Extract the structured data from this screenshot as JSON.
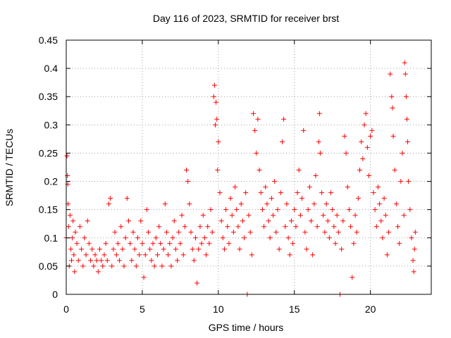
{
  "chart_data": {
    "type": "scatter",
    "title": "Day 116 of 2023, SRMTID for receiver brst",
    "xlabel": "GPS time / hours",
    "ylabel": "SRMTID / TECUs",
    "xlim": [
      0,
      24
    ],
    "ylim": [
      0,
      0.45
    ],
    "x_ticks": [
      0,
      5,
      10,
      15,
      20
    ],
    "y_ticks": [
      0,
      0.05,
      0.1,
      0.15,
      0.2,
      0.25,
      0.3,
      0.35,
      0.4,
      0.45
    ],
    "x_tick_labels": [
      "0",
      "5",
      "10",
      "15",
      "20"
    ],
    "y_tick_labels": [
      "0",
      "0.05",
      "0.1",
      "0.15",
      "0.2",
      "0.25",
      "0.3",
      "0.35",
      "0.4",
      "0.45"
    ],
    "grid": true,
    "marker": "+",
    "marker_color": "#ff0000",
    "series": [
      {
        "name": "SRMTID",
        "points": [
          [
            0.0,
            0.1
          ],
          [
            0.05,
            0.245
          ],
          [
            0.08,
            0.21
          ],
          [
            0.1,
            0.195
          ],
          [
            0.12,
            0.16
          ],
          [
            0.15,
            0.12
          ],
          [
            0.2,
            0.05
          ],
          [
            0.25,
            0.14
          ],
          [
            0.3,
            0.08
          ],
          [
            0.35,
            0.06
          ],
          [
            0.4,
            0.1
          ],
          [
            0.45,
            0.13
          ],
          [
            0.5,
            0.07
          ],
          [
            0.55,
            0.04
          ],
          [
            0.6,
            0.11
          ],
          [
            0.7,
            0.09
          ],
          [
            0.8,
            0.06
          ],
          [
            0.9,
            0.12
          ],
          [
            1.0,
            0.08
          ],
          [
            1.1,
            0.05
          ],
          [
            1.2,
            0.1
          ],
          [
            1.3,
            0.07
          ],
          [
            1.4,
            0.13
          ],
          [
            1.5,
            0.09
          ],
          [
            1.6,
            0.06
          ],
          [
            1.7,
            0.08
          ],
          [
            1.8,
            0.05
          ],
          [
            1.9,
            0.07
          ],
          [
            2.0,
            0.06
          ],
          [
            2.1,
            0.04
          ],
          [
            2.2,
            0.08
          ],
          [
            2.3,
            0.06
          ],
          [
            2.4,
            0.05
          ],
          [
            2.5,
            0.07
          ],
          [
            2.6,
            0.09
          ],
          [
            2.7,
            0.06
          ],
          [
            2.8,
            0.16
          ],
          [
            2.9,
            0.17
          ],
          [
            3.0,
            0.05
          ],
          [
            3.1,
            0.08
          ],
          [
            3.2,
            0.11
          ],
          [
            3.3,
            0.07
          ],
          [
            3.4,
            0.09
          ],
          [
            3.5,
            0.06
          ],
          [
            3.6,
            0.12
          ],
          [
            3.7,
            0.08
          ],
          [
            3.8,
            0.05
          ],
          [
            3.9,
            0.1
          ],
          [
            4.0,
            0.17
          ],
          [
            4.1,
            0.13
          ],
          [
            4.2,
            0.09
          ],
          [
            4.3,
            0.06
          ],
          [
            4.4,
            0.11
          ],
          [
            4.5,
            0.08
          ],
          [
            4.6,
            0.05
          ],
          [
            4.7,
            0.1
          ],
          [
            4.8,
            0.07
          ],
          [
            4.9,
            0.13
          ],
          [
            5.0,
            0.09
          ],
          [
            5.1,
            0.03
          ],
          [
            5.2,
            0.07
          ],
          [
            5.3,
            0.15
          ],
          [
            5.4,
            0.11
          ],
          [
            5.5,
            0.08
          ],
          [
            5.6,
            0.06
          ],
          [
            5.7,
            0.09
          ],
          [
            5.8,
            0.05
          ],
          [
            5.9,
            0.1
          ],
          [
            6.0,
            0.07
          ],
          [
            6.1,
            0.12
          ],
          [
            6.2,
            0.09
          ],
          [
            6.3,
            0.05
          ],
          [
            6.4,
            0.08
          ],
          [
            6.5,
            0.16
          ],
          [
            6.6,
            0.11
          ],
          [
            6.7,
            0.07
          ],
          [
            6.8,
            0.09
          ],
          [
            6.9,
            0.05
          ],
          [
            7.0,
            0.1
          ],
          [
            7.1,
            0.13
          ],
          [
            7.2,
            0.08
          ],
          [
            7.3,
            0.06
          ],
          [
            7.4,
            0.11
          ],
          [
            7.5,
            0.09
          ],
          [
            7.6,
            0.14
          ],
          [
            7.7,
            0.07
          ],
          [
            7.8,
            0.12
          ],
          [
            7.9,
            0.22
          ],
          [
            8.0,
            0.2
          ],
          [
            8.1,
            0.16
          ],
          [
            8.2,
            0.11
          ],
          [
            8.3,
            0.08
          ],
          [
            8.4,
            0.06
          ],
          [
            8.5,
            0.1
          ],
          [
            8.6,
            0.02
          ],
          [
            8.7,
            0.08
          ],
          [
            8.8,
            0.12
          ],
          [
            8.9,
            0.09
          ],
          [
            9.0,
            0.14
          ],
          [
            9.1,
            0.1
          ],
          [
            9.2,
            0.07
          ],
          [
            9.3,
            0.12
          ],
          [
            9.4,
            0.09
          ],
          [
            9.5,
            0.15
          ],
          [
            9.6,
            0.11
          ],
          [
            9.7,
            0.35
          ],
          [
            9.75,
            0.37
          ],
          [
            9.8,
            0.3
          ],
          [
            9.85,
            0.34
          ],
          [
            9.9,
            0.31
          ],
          [
            9.95,
            0.22
          ],
          [
            10.0,
            0.27
          ],
          [
            10.1,
            0.18
          ],
          [
            10.2,
            0.13
          ],
          [
            10.3,
            0.1
          ],
          [
            10.4,
            0.08
          ],
          [
            10.5,
            0.15
          ],
          [
            10.6,
            0.12
          ],
          [
            10.7,
            0.09
          ],
          [
            10.8,
            0.17
          ],
          [
            10.9,
            0.14
          ],
          [
            11.0,
            0.11
          ],
          [
            11.1,
            0.19
          ],
          [
            11.2,
            0.15
          ],
          [
            11.3,
            0.12
          ],
          [
            11.4,
            0.08
          ],
          [
            11.5,
            0.16
          ],
          [
            11.6,
            0.13
          ],
          [
            11.7,
            0.1
          ],
          [
            11.8,
            0.18
          ],
          [
            11.9,
            0.0
          ],
          [
            12.0,
            0.14
          ],
          [
            12.1,
            0.11
          ],
          [
            12.2,
            0.07
          ],
          [
            12.3,
            0.32
          ],
          [
            12.4,
            0.29
          ],
          [
            12.5,
            0.25
          ],
          [
            12.6,
            0.31
          ],
          [
            12.7,
            0.22
          ],
          [
            12.8,
            0.18
          ],
          [
            12.9,
            0.15
          ],
          [
            13.0,
            0.12
          ],
          [
            13.1,
            0.19
          ],
          [
            13.2,
            0.16
          ],
          [
            13.3,
            0.13
          ],
          [
            13.4,
            0.1
          ],
          [
            13.5,
            0.17
          ],
          [
            13.6,
            0.14
          ],
          [
            13.7,
            0.2
          ],
          [
            13.8,
            0.11
          ],
          [
            13.9,
            0.15
          ],
          [
            14.0,
            0.08
          ],
          [
            14.1,
            0.18
          ],
          [
            14.2,
            0.27
          ],
          [
            14.3,
            0.31
          ],
          [
            14.4,
            0.12
          ],
          [
            14.5,
            0.16
          ],
          [
            14.6,
            0.1
          ],
          [
            14.7,
            0.07
          ],
          [
            14.8,
            0.13
          ],
          [
            14.9,
            0.09
          ],
          [
            15.0,
            0.15
          ],
          [
            15.1,
            0.12
          ],
          [
            15.2,
            0.18
          ],
          [
            15.3,
            0.22
          ],
          [
            15.4,
            0.14
          ],
          [
            15.5,
            0.17
          ],
          [
            15.6,
            0.29
          ],
          [
            15.7,
            0.11
          ],
          [
            15.8,
            0.08
          ],
          [
            15.9,
            0.15
          ],
          [
            16.0,
            0.19
          ],
          [
            16.1,
            0.13
          ],
          [
            16.2,
            0.07
          ],
          [
            16.3,
            0.16
          ],
          [
            16.4,
            0.21
          ],
          [
            16.5,
            0.12
          ],
          [
            16.6,
            0.27
          ],
          [
            16.65,
            0.32
          ],
          [
            16.7,
            0.25
          ],
          [
            16.8,
            0.18
          ],
          [
            16.9,
            0.14
          ],
          [
            17.0,
            0.11
          ],
          [
            17.1,
            0.16
          ],
          [
            17.2,
            0.13
          ],
          [
            17.3,
            0.1
          ],
          [
            17.4,
            0.18
          ],
          [
            17.5,
            0.15
          ],
          [
            17.6,
            0.12
          ],
          [
            17.7,
            0.09
          ],
          [
            17.8,
            0.14
          ],
          [
            17.9,
            0.11
          ],
          [
            18.0,
            0.0
          ],
          [
            18.1,
            0.08
          ],
          [
            18.2,
            0.13
          ],
          [
            18.3,
            0.28
          ],
          [
            18.4,
            0.25
          ],
          [
            18.5,
            0.19
          ],
          [
            18.6,
            0.15
          ],
          [
            18.7,
            0.12
          ],
          [
            18.8,
            0.03
          ],
          [
            18.9,
            0.09
          ],
          [
            19.0,
            0.14
          ],
          [
            19.1,
            0.11
          ],
          [
            19.2,
            0.17
          ],
          [
            19.3,
            0.22
          ],
          [
            19.4,
            0.27
          ],
          [
            19.5,
            0.24
          ],
          [
            19.6,
            0.3
          ],
          [
            19.7,
            0.32
          ],
          [
            19.8,
            0.26
          ],
          [
            19.9,
            0.21
          ],
          [
            20.0,
            0.28
          ],
          [
            20.1,
            0.29
          ],
          [
            20.2,
            0.18
          ],
          [
            20.3,
            0.15
          ],
          [
            20.4,
            0.12
          ],
          [
            20.5,
            0.19
          ],
          [
            20.6,
            0.16
          ],
          [
            20.7,
            0.13
          ],
          [
            20.8,
            0.1
          ],
          [
            20.9,
            0.17
          ],
          [
            21.0,
            0.14
          ],
          [
            21.1,
            0.07
          ],
          [
            21.2,
            0.11
          ],
          [
            21.3,
            0.39
          ],
          [
            21.4,
            0.35
          ],
          [
            21.45,
            0.33
          ],
          [
            21.5,
            0.28
          ],
          [
            21.6,
            0.22
          ],
          [
            21.7,
            0.16
          ],
          [
            21.8,
            0.12
          ],
          [
            21.9,
            0.09
          ],
          [
            22.0,
            0.2
          ],
          [
            22.1,
            0.25
          ],
          [
            22.2,
            0.14
          ],
          [
            22.25,
            0.41
          ],
          [
            22.3,
            0.39
          ],
          [
            22.35,
            0.35
          ],
          [
            22.4,
            0.31
          ],
          [
            22.45,
            0.27
          ],
          [
            22.5,
            0.2
          ],
          [
            22.6,
            0.15
          ],
          [
            22.7,
            0.1
          ],
          [
            22.8,
            0.06
          ],
          [
            22.85,
            0.04
          ],
          [
            22.9,
            0.08
          ],
          [
            22.95,
            0.11
          ]
        ]
      }
    ]
  }
}
